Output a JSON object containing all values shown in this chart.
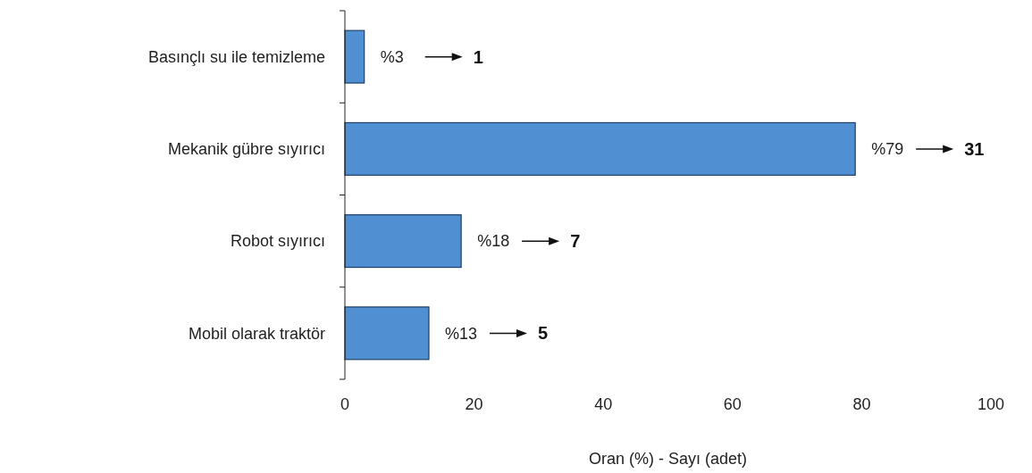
{
  "chart_data": {
    "type": "bar",
    "orientation": "horizontal",
    "xlabel": "Oran (%) - Sayı (adet)",
    "categories": [
      "Basınçlı su ile temizleme",
      "Mekanik gübre sıyırıcı",
      "Robot sıyırıcı",
      "Mobil olarak traktör"
    ],
    "values": [
      3,
      79,
      18,
      13
    ],
    "color": "#4f8fd2",
    "value_labels": [
      "%3",
      "%79",
      "%18",
      "%13"
    ],
    "annotations": [
      "1",
      "31",
      "7",
      "5"
    ],
    "xlim": [
      0,
      100
    ],
    "xticks": [
      0,
      20,
      40,
      60,
      80,
      100
    ],
    "grid": false
  }
}
